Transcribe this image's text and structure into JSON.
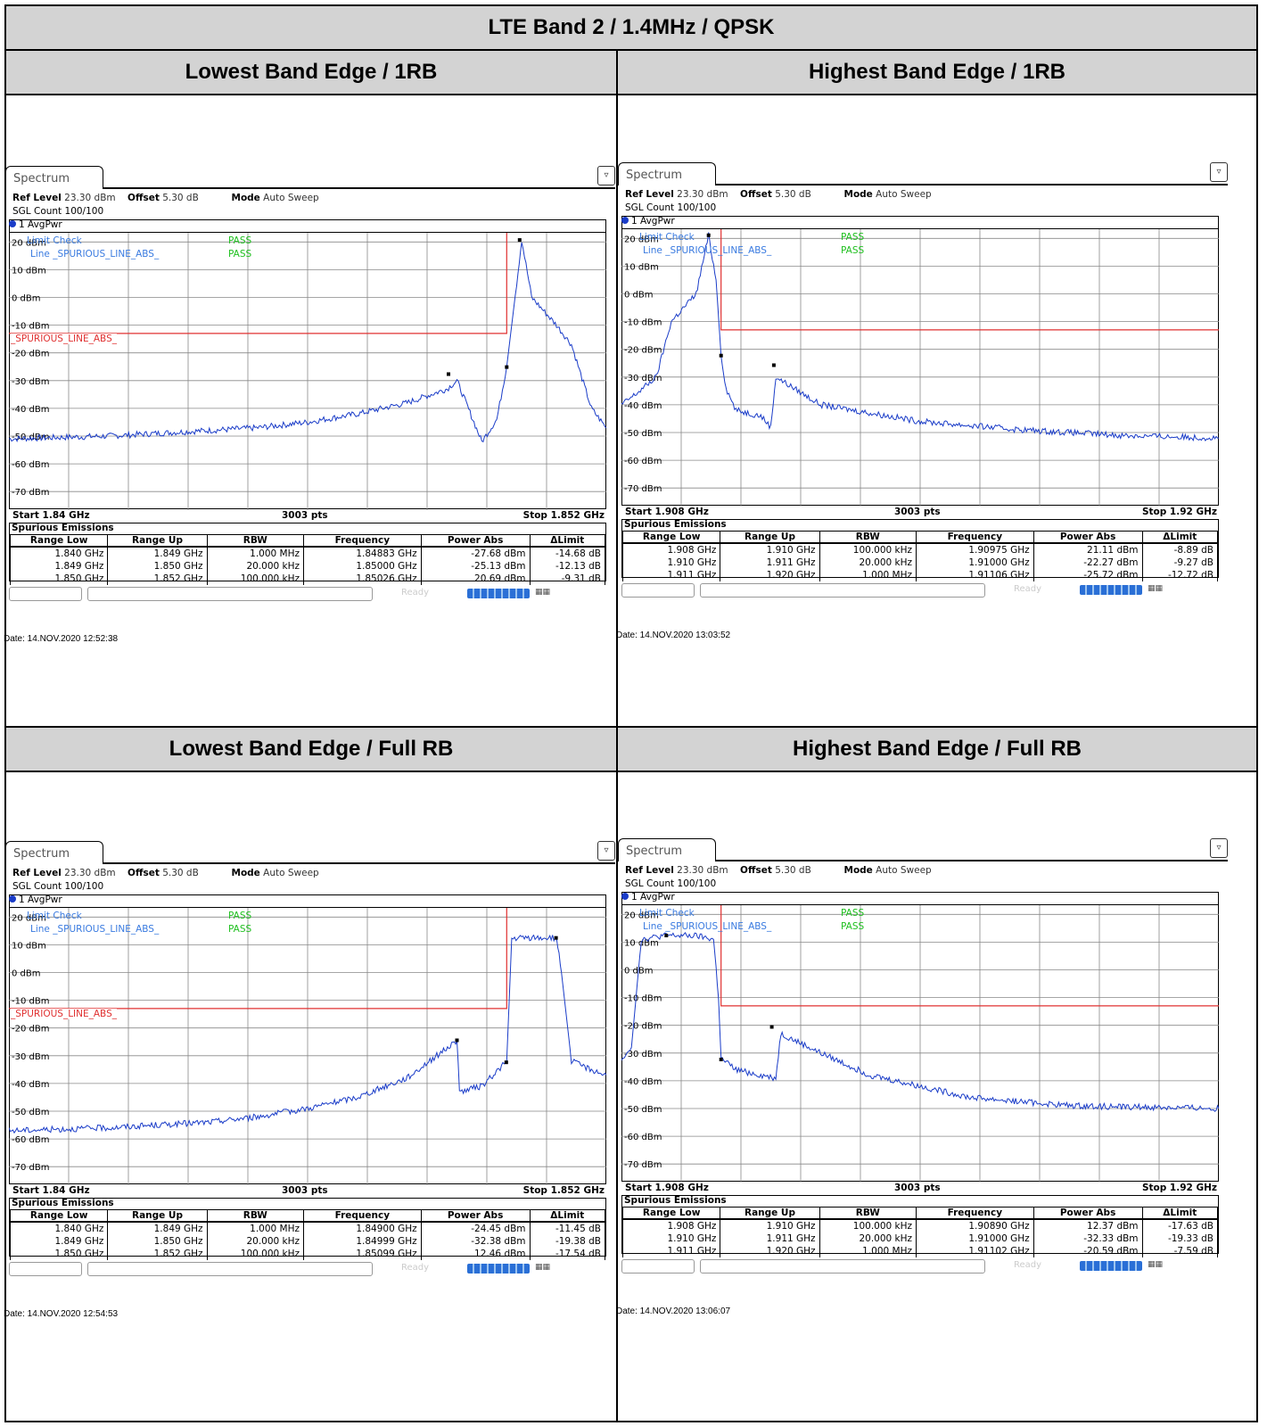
{
  "page_title": "LTE Band 2 / 1.4MHz / QPSK",
  "colors": {
    "trace": "#1a3cc8",
    "limit_line": "#e03030",
    "pass": "#20c020",
    "limit_label": "#3a7be0",
    "header_bg": "#d3d3d3"
  },
  "panels": [
    {
      "heading": "Lowest Band Edge / 1RB",
      "tab": "Spectrum",
      "ref_level_label": "Ref Level",
      "ref_level": "23.30 dBm",
      "offset_label": "Offset",
      "offset": "5.30 dB",
      "mode_label": "Mode",
      "mode": "Auto Sweep",
      "sgl_count": "SGL Count 100/100",
      "trace_label": "1 AvgPwr",
      "limit_check": "Limit Check",
      "limit_check_result": "PASS",
      "line_label": "Line _SPURIOUS_LINE_ABS_",
      "line_result": "PASS",
      "limit_line_name": "_SPURIOUS_LINE_ABS_",
      "y_ticks": [
        "20 dBm",
        "10 dBm",
        "0 dBm",
        "-10 dBm",
        "-20 dBm",
        "-30 dBm",
        "-40 dBm",
        "-50 dBm",
        "-60 dBm",
        "-70 dBm"
      ],
      "start": "Start 1.84 GHz",
      "pts": "3003 pts",
      "stop": "Stop 1.852 GHz",
      "em_title": "Spurious Emissions",
      "em_headers": [
        "Range Low",
        "Range Up",
        "RBW",
        "Frequency",
        "Power Abs",
        "ΔLimit"
      ],
      "em_rows": [
        [
          "1.840 GHz",
          "1.849 GHz",
          "1.000 MHz",
          "1.84883 GHz",
          "-27.68 dBm",
          "-14.68 dB"
        ],
        [
          "1.849 GHz",
          "1.850 GHz",
          "20.000 kHz",
          "1.85000 GHz",
          "-25.13 dBm",
          "-12.13 dB"
        ],
        [
          "1.850 GHz",
          "1.852 GHz",
          "100.000 kHz",
          "1.85026 GHz",
          "20.69 dBm",
          "-9.31 dB"
        ]
      ],
      "status_ready": "Ready",
      "date": "Date: 14.NOV.2020  12:52:38"
    },
    {
      "heading": "Highest Band Edge / 1RB",
      "tab": "Spectrum",
      "ref_level_label": "Ref Level",
      "ref_level": "23.30 dBm",
      "offset_label": "Offset",
      "offset": "5.30 dB",
      "mode_label": "Mode",
      "mode": "Auto Sweep",
      "sgl_count": "SGL Count 100/100",
      "trace_label": "1 AvgPwr",
      "limit_check": "Limit Check",
      "limit_check_result": "PASS",
      "line_label": "Line _SPURIOUS_LINE_ABS_",
      "line_result": "PASS",
      "limit_line_name": "_SPURIOUS_LINE_ABS_",
      "y_ticks": [
        "20 dBm",
        "10 dBm",
        "0 dBm",
        "-10 dBm",
        "-20 dBm",
        "-30 dBm",
        "-40 dBm",
        "-50 dBm",
        "-60 dBm",
        "-70 dBm"
      ],
      "start": "Start 1.908 GHz",
      "pts": "3003 pts",
      "stop": "Stop 1.92 GHz",
      "em_title": "Spurious Emissions",
      "em_headers": [
        "Range Low",
        "Range Up",
        "RBW",
        "Frequency",
        "Power Abs",
        "ΔLimit"
      ],
      "em_rows": [
        [
          "1.908 GHz",
          "1.910 GHz",
          "100.000 kHz",
          "1.90975 GHz",
          "21.11 dBm",
          "-8.89 dB"
        ],
        [
          "1.910 GHz",
          "1.911 GHz",
          "20.000 kHz",
          "1.91000 GHz",
          "-22.27 dBm",
          "-9.27 dB"
        ],
        [
          "1.911 GHz",
          "1.920 GHz",
          "1.000 MHz",
          "1.91106 GHz",
          "-25.72 dBm",
          "-12.72 dB"
        ]
      ],
      "status_ready": "Ready",
      "date": "Date: 14.NOV.2020  13:03:52"
    },
    {
      "heading": "Lowest Band Edge / Full RB",
      "tab": "Spectrum",
      "ref_level_label": "Ref Level",
      "ref_level": "23.30 dBm",
      "offset_label": "Offset",
      "offset": "5.30 dB",
      "mode_label": "Mode",
      "mode": "Auto Sweep",
      "sgl_count": "SGL Count 100/100",
      "trace_label": "1 AvgPwr",
      "limit_check": "Limit Check",
      "limit_check_result": "PASS",
      "line_label": "Line _SPURIOUS_LINE_ABS_",
      "line_result": "PASS",
      "limit_line_name": "_SPURIOUS_LINE_ABS_",
      "y_ticks": [
        "20 dBm",
        "10 dBm",
        "0 dBm",
        "-10 dBm",
        "-20 dBm",
        "-30 dBm",
        "-40 dBm",
        "-50 dBm",
        "-60 dBm",
        "-70 dBm"
      ],
      "start": "Start 1.84 GHz",
      "pts": "3003 pts",
      "stop": "Stop 1.852 GHz",
      "em_title": "Spurious Emissions",
      "em_headers": [
        "Range Low",
        "Range Up",
        "RBW",
        "Frequency",
        "Power Abs",
        "ΔLimit"
      ],
      "em_rows": [
        [
          "1.840 GHz",
          "1.849 GHz",
          "1.000 MHz",
          "1.84900 GHz",
          "-24.45 dBm",
          "-11.45 dB"
        ],
        [
          "1.849 GHz",
          "1.850 GHz",
          "20.000 kHz",
          "1.84999 GHz",
          "-32.38 dBm",
          "-19.38 dB"
        ],
        [
          "1.850 GHz",
          "1.852 GHz",
          "100.000 kHz",
          "1.85099 GHz",
          "12.46 dBm",
          "-17.54 dB"
        ]
      ],
      "status_ready": "Ready",
      "date": "Date: 14.NOV.2020  12:54:53"
    },
    {
      "heading": "Highest Band Edge / Full RB",
      "tab": "Spectrum",
      "ref_level_label": "Ref Level",
      "ref_level": "23.30 dBm",
      "offset_label": "Offset",
      "offset": "5.30 dB",
      "mode_label": "Mode",
      "mode": "Auto Sweep",
      "sgl_count": "SGL Count 100/100",
      "trace_label": "1 AvgPwr",
      "limit_check": "Limit Check",
      "limit_check_result": "PASS",
      "line_label": "Line _SPURIOUS_LINE_ABS_",
      "line_result": "PASS",
      "limit_line_name": "_SPURIOUS_LINE_ABS_",
      "y_ticks": [
        "20 dBm",
        "10 dBm",
        "0 dBm",
        "-10 dBm",
        "-20 dBm",
        "-30 dBm",
        "-40 dBm",
        "-50 dBm",
        "-60 dBm",
        "-70 dBm"
      ],
      "start": "Start 1.908 GHz",
      "pts": "3003 pts",
      "stop": "Stop 1.92 GHz",
      "em_title": "Spurious Emissions",
      "em_headers": [
        "Range Low",
        "Range Up",
        "RBW",
        "Frequency",
        "Power Abs",
        "ΔLimit"
      ],
      "em_rows": [
        [
          "1.908 GHz",
          "1.910 GHz",
          "100.000 kHz",
          "1.90890 GHz",
          "12.37 dBm",
          "-17.63 dB"
        ],
        [
          "1.910 GHz",
          "1.911 GHz",
          "20.000 kHz",
          "1.91000 GHz",
          "-32.33 dBm",
          "-19.33 dB"
        ],
        [
          "1.911 GHz",
          "1.920 GHz",
          "1.000 MHz",
          "1.91102 GHz",
          "-20.59 dBm",
          "-7.59 dB"
        ]
      ],
      "status_ready": "Ready",
      "date": "Date: 14.NOV.2020  13:06:07"
    }
  ],
  "chart_data": [
    {
      "type": "line",
      "title": "Lowest Band Edge / 1RB",
      "xlabel": "",
      "ylabel": "",
      "xlim": [
        1.84,
        1.852
      ],
      "ylim": [
        -76.7,
        23.3
      ],
      "x_unit": "GHz",
      "y_unit": "dBm",
      "grid": true,
      "limit_line": [
        [
          1.84,
          -13
        ],
        [
          1.85,
          -13
        ],
        [
          1.85,
          33
        ]
      ],
      "series": [
        {
          "x": [
            1.84,
            1.842,
            1.844,
            1.845,
            1.846,
            1.847,
            1.848,
            1.8488,
            1.849,
            1.8495,
            1.8498,
            1.85,
            1.8502,
            1.8503,
            1.8505,
            1.851,
            1.8513,
            1.8517,
            1.852
          ],
          "y": [
            -51,
            -50,
            -48,
            -47,
            -45,
            -42,
            -38,
            -33,
            -30,
            -52,
            -44,
            -25,
            5,
            20.7,
            0,
            -10,
            -17,
            -40,
            -47
          ]
        }
      ]
    },
    {
      "type": "line",
      "title": "Highest Band Edge / 1RB",
      "xlabel": "",
      "ylabel": "",
      "xlim": [
        1.908,
        1.92
      ],
      "ylim": [
        -76.7,
        23.3
      ],
      "x_unit": "GHz",
      "y_unit": "dBm",
      "grid": true,
      "limit_line": [
        [
          1.908,
          33
        ],
        [
          1.91,
          33
        ],
        [
          1.91,
          -13
        ],
        [
          1.92,
          -13
        ]
      ],
      "series": [
        {
          "x": [
            1.908,
            1.9083,
            1.9087,
            1.909,
            1.9095,
            1.90975,
            1.9099,
            1.91,
            1.9101,
            1.9103,
            1.9108,
            1.911,
            1.9111,
            1.912,
            1.914,
            1.916,
            1.918,
            1.92
          ],
          "y": [
            -40,
            -36,
            -30,
            -10,
            0,
            21.1,
            5,
            -22,
            -34,
            -42,
            -44,
            -48,
            -30,
            -40,
            -46,
            -49,
            -51,
            -52
          ]
        }
      ]
    },
    {
      "type": "line",
      "title": "Lowest Band Edge / Full RB",
      "xlabel": "",
      "ylabel": "",
      "xlim": [
        1.84,
        1.852
      ],
      "ylim": [
        -76.7,
        23.3
      ],
      "x_unit": "GHz",
      "y_unit": "dBm",
      "grid": true,
      "limit_line": [
        [
          1.84,
          -13
        ],
        [
          1.85,
          -13
        ],
        [
          1.85,
          33
        ]
      ],
      "series": [
        {
          "x": [
            1.84,
            1.842,
            1.844,
            1.845,
            1.846,
            1.847,
            1.848,
            1.849,
            1.84905,
            1.8495,
            1.85,
            1.8501,
            1.8503,
            1.851,
            1.8511,
            1.8513,
            1.8517,
            1.852
          ],
          "y": [
            -57,
            -56,
            -54,
            -52,
            -49,
            -45,
            -38,
            -24.5,
            -43,
            -41,
            -32,
            12,
            12.4,
            12.5,
            0,
            -32,
            -35,
            -37
          ]
        }
      ]
    },
    {
      "type": "line",
      "title": "Highest Band Edge / Full RB",
      "xlabel": "",
      "ylabel": "",
      "xlim": [
        1.908,
        1.92
      ],
      "ylim": [
        -76.7,
        23.3
      ],
      "x_unit": "GHz",
      "y_unit": "dBm",
      "grid": true,
      "limit_line": [
        [
          1.908,
          33
        ],
        [
          1.91,
          33
        ],
        [
          1.91,
          -13
        ],
        [
          1.92,
          -13
        ]
      ],
      "series": [
        {
          "x": [
            1.908,
            1.9082,
            1.9084,
            1.9089,
            1.9095,
            1.90985,
            1.90995,
            1.91,
            1.9103,
            1.9108,
            1.9111,
            1.9112,
            1.912,
            1.913,
            1.915,
            1.917,
            1.92
          ],
          "y": [
            -32,
            -28,
            11,
            12.4,
            12.2,
            11,
            -10,
            -32,
            -36,
            -38,
            -39,
            -23,
            -30,
            -38,
            -46,
            -49,
            -50
          ]
        }
      ]
    }
  ]
}
